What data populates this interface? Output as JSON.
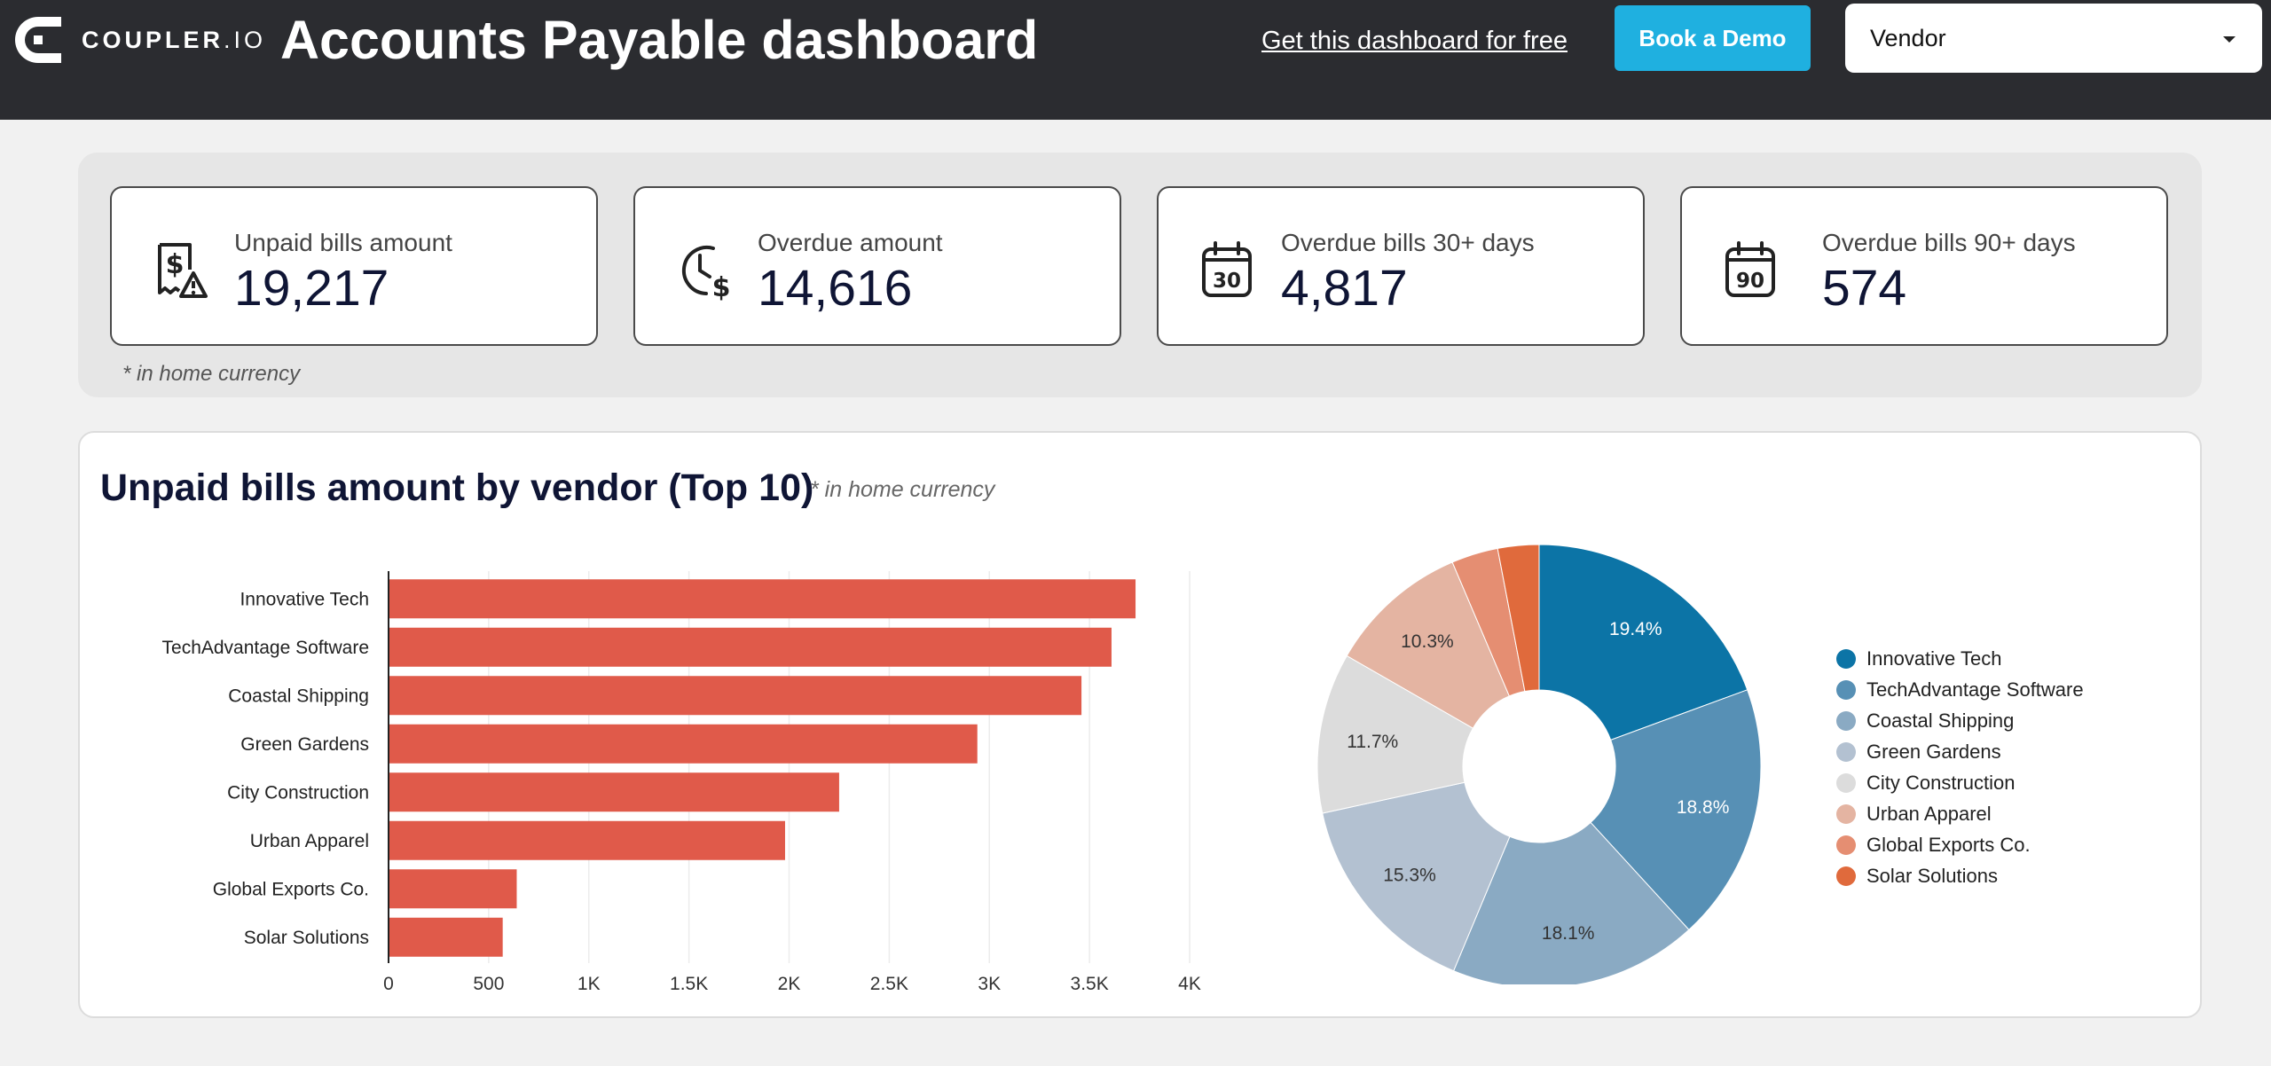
{
  "header": {
    "logo_text_bold": "COUPLER",
    "logo_text_light": ".IO",
    "title": "Accounts Payable dashboard",
    "free_link": "Get this dashboard for free",
    "demo_button": "Book a Demo",
    "vendor_filter": "Vendor"
  },
  "kpis": [
    {
      "label": "Unpaid bills amount",
      "value": "19,217",
      "icon": "bill-warning-icon"
    },
    {
      "label": "Overdue amount",
      "value": "14,616",
      "icon": "clock-dollar-icon"
    },
    {
      "label": "Overdue bills 30+ days",
      "value": "4,817",
      "icon": "calendar-30-icon"
    },
    {
      "label": "Overdue bills 90+ days",
      "value": "574",
      "icon": "calendar-90-icon"
    }
  ],
  "kpi_note": "* in home currency",
  "chart_section": {
    "title": "Unpaid bills amount by vendor (Top 10)",
    "note": "* in home currency"
  },
  "chart_data": [
    {
      "type": "bar",
      "orientation": "horizontal",
      "categories": [
        "Innovative Tech",
        "TechAdvantage Software",
        "Coastal Shipping",
        "Green Gardens",
        "City Construction",
        "Urban Apparel",
        "Global Exports Co.",
        "Solar Solutions"
      ],
      "values": [
        3730,
        3610,
        3460,
        2940,
        2250,
        1980,
        640,
        570
      ],
      "xlim": [
        0,
        4000
      ],
      "xticks": [
        0,
        500,
        1000,
        1500,
        2000,
        2500,
        3000,
        3500,
        4000
      ],
      "xtick_labels": [
        "0",
        "500",
        "1K",
        "1.5K",
        "2K",
        "2.5K",
        "3K",
        "3.5K",
        "4K"
      ],
      "bar_color": "#e05a4a",
      "grid": true
    },
    {
      "type": "pie",
      "donut": true,
      "categories": [
        "Innovative Tech",
        "TechAdvantage Software",
        "Coastal Shipping",
        "Green Gardens",
        "City Construction",
        "Urban Apparel",
        "Global Exports Co.",
        "Solar Solutions"
      ],
      "values": [
        19.4,
        18.8,
        18.1,
        15.3,
        11.7,
        10.3,
        3.4,
        3.0
      ],
      "labels": [
        "19.4%",
        "18.8%",
        "18.1%",
        "15.3%",
        "11.7%",
        "10.3%",
        "",
        ""
      ],
      "colors": [
        "#0c74a6",
        "#5790b5",
        "#8aaac3",
        "#b3c1d1",
        "#dcdcdc",
        "#e4b4a2",
        "#e58e72",
        "#e06a3c"
      ],
      "legend_position": "right"
    }
  ]
}
